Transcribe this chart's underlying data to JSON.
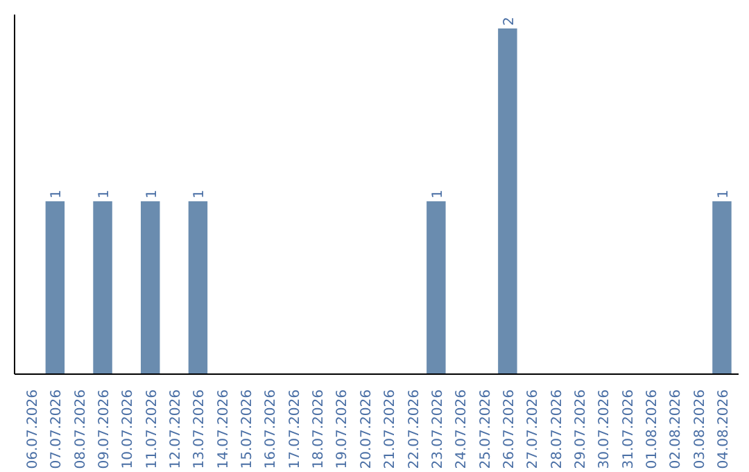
{
  "chart_data": {
    "type": "bar",
    "categories": [
      "06.07.2026",
      "07.07.2026",
      "08.07.2026",
      "09.07.2026",
      "10.07.2026",
      "11.07.2026",
      "12.07.2026",
      "13.07.2026",
      "14.07.2026",
      "15.07.2026",
      "16.07.2026",
      "17.07.2026",
      "18.07.2026",
      "19.07.2026",
      "20.07.2026",
      "21.07.2026",
      "22.07.2026",
      "23.07.2026",
      "24.07.2026",
      "25.07.2026",
      "26.07.2026",
      "27.07.2026",
      "28.07.2026",
      "29.07.2026",
      "30.07.2026",
      "31.07.2026",
      "01.08.2026",
      "02.08.2026",
      "03.08.2026",
      "04.08.2026"
    ],
    "values": [
      0,
      1,
      0,
      1,
      0,
      1,
      0,
      1,
      0,
      0,
      0,
      0,
      0,
      0,
      0,
      0,
      0,
      1,
      0,
      0,
      2,
      0,
      0,
      0,
      0,
      0,
      0,
      0,
      0,
      1
    ],
    "value_labels": [
      null,
      "1",
      null,
      "1",
      null,
      "1",
      null,
      "1",
      null,
      null,
      null,
      null,
      null,
      null,
      null,
      null,
      null,
      "1",
      null,
      null,
      "2",
      null,
      null,
      null,
      null,
      null,
      null,
      null,
      null,
      "1"
    ],
    "color": "#6a8caf",
    "tick_labels": "x",
    "grid": false
  }
}
